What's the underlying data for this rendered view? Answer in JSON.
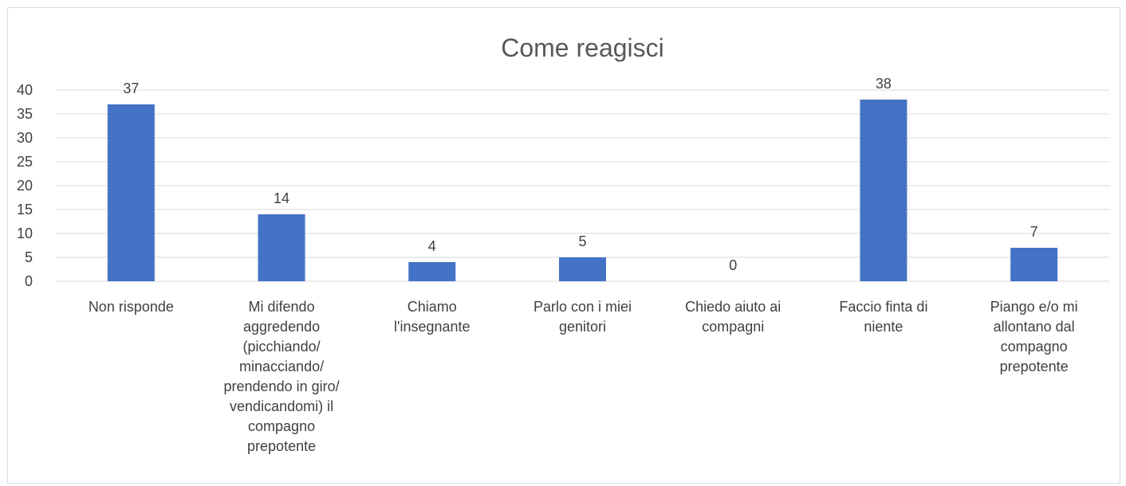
{
  "chart_data": {
    "type": "bar",
    "title": "Come reagisci",
    "xlabel": "",
    "ylabel": "",
    "ylim": [
      0,
      40
    ],
    "yticks": [
      0,
      5,
      10,
      15,
      20,
      25,
      30,
      35,
      40
    ],
    "grid": true,
    "legend": "none",
    "bar_color": "#4472c4",
    "categories": [
      [
        "Non risponde"
      ],
      [
        "Mi difendo",
        "aggredendo",
        "(picchiando/",
        "minacciando/",
        "prendendo in giro/",
        "vendicandomi) il",
        "compagno",
        "prepotente"
      ],
      [
        "Chiamo",
        "l'insegnante"
      ],
      [
        "Parlo con i miei",
        "genitori"
      ],
      [
        "Chiedo aiuto ai",
        "compagni"
      ],
      [
        "Faccio finta di",
        "niente"
      ],
      [
        "Piango e/o mi",
        "allontano dal",
        "compagno",
        "prepotente"
      ]
    ],
    "values": [
      37,
      14,
      4,
      5,
      0,
      38,
      7
    ]
  }
}
